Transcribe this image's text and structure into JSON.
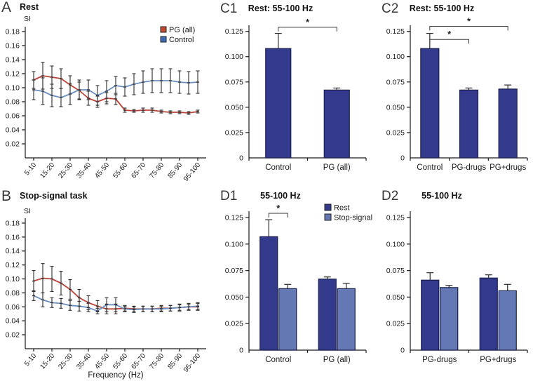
{
  "colors": {
    "pg_line": "#bc4338",
    "control_line": "#6b90c4",
    "pg_legend_fill": "#c04a30",
    "control_legend_fill": "#3f6cb5",
    "dark_bar": "#333a8c",
    "light_bar": "#6478b4",
    "bar_stroke": "#1b2050",
    "error_bar": "#2b2b2b",
    "axis": "#1a1a1a",
    "sig": "#3a3a3a"
  },
  "panels": {
    "A": {
      "letter": "A"
    },
    "B": {
      "letter": "B"
    },
    "C1": {
      "letter": "C1"
    },
    "C2": {
      "letter": "C2"
    },
    "D1": {
      "letter": "D1"
    },
    "D2": {
      "letter": "D2"
    }
  },
  "chart_data": [
    {
      "id": "A",
      "type": "line",
      "title": "Rest",
      "ylabel": "SI",
      "xlabel": "",
      "x_categories": [
        "5-10",
        "10-15",
        "15-20",
        "20-25",
        "25-30",
        "30-35",
        "35-40",
        "40-45",
        "45-50",
        "50-55",
        "55-60",
        "60-65",
        "65-70",
        "70-75",
        "75-80",
        "80-85",
        "85-90",
        "90-95",
        "95-100"
      ],
      "x_tick_labels": [
        "5-10",
        "15-20",
        "25-30",
        "35-40",
        "45-50",
        "55-60",
        "65-70",
        "75-80",
        "85-90",
        "95-100"
      ],
      "ytick_values": [
        0.02,
        0.04,
        0.06,
        0.08,
        0.1,
        0.12,
        0.14,
        0.16,
        0.18
      ],
      "ytick_labels": [
        "0.02",
        "0.04",
        "0.06",
        "0.08",
        "0.10",
        "0.12",
        "0.14",
        "0.16",
        "0.18"
      ],
      "ymin": 0,
      "ymax_axis": 0.187,
      "legend": true,
      "grid": false,
      "series": [
        {
          "name": "PG (all)",
          "color_key": "pg_line",
          "legend_fill": "pg_legend_fill",
          "values": [
            0.111,
            0.117,
            0.115,
            0.113,
            0.104,
            0.096,
            0.085,
            0.08,
            0.085,
            0.084,
            0.068,
            0.067,
            0.068,
            0.068,
            0.066,
            0.065,
            0.065,
            0.064,
            0.066
          ],
          "errors": [
            0.012,
            0.019,
            0.016,
            0.014,
            0.013,
            0.012,
            0.01,
            0.008,
            0.008,
            0.008,
            0.003,
            0.002,
            0.003,
            0.003,
            0.002,
            0.002,
            0.002,
            0.002,
            0.002
          ]
        },
        {
          "name": "Control",
          "color_key": "control_line",
          "legend_fill": "control_legend_fill",
          "values": [
            0.097,
            0.095,
            0.089,
            0.086,
            0.091,
            0.097,
            0.097,
            0.089,
            0.095,
            0.103,
            0.101,
            0.105,
            0.108,
            0.11,
            0.11,
            0.11,
            0.108,
            0.107,
            0.108
          ],
          "errors": [
            0.014,
            0.019,
            0.016,
            0.013,
            0.015,
            0.014,
            0.014,
            0.014,
            0.015,
            0.013,
            0.013,
            0.015,
            0.016,
            0.017,
            0.017,
            0.017,
            0.016,
            0.016,
            0.016
          ]
        }
      ]
    },
    {
      "id": "B",
      "type": "line",
      "title": "Stop-signal task",
      "ylabel": "SI",
      "xlabel": "Frequency (Hz)",
      "x_categories": [
        "5-10",
        "10-15",
        "15-20",
        "20-25",
        "25-30",
        "30-35",
        "35-40",
        "40-45",
        "45-50",
        "50-55",
        "55-60",
        "60-65",
        "65-70",
        "70-75",
        "75-80",
        "80-85",
        "85-90",
        "90-95",
        "95-100"
      ],
      "x_tick_labels": [
        "5-10",
        "15-20",
        "25-30",
        "35-40",
        "45-50",
        "55-60",
        "65-70",
        "75-80",
        "85-90",
        "95-100"
      ],
      "ytick_values": [
        0.02,
        0.04,
        0.06,
        0.08,
        0.1,
        0.12,
        0.14,
        0.16,
        0.18
      ],
      "ytick_labels": [
        "0.02",
        "0.04",
        "0.06",
        "0.08",
        "0.10",
        "0.12",
        "0.14",
        "0.16",
        "0.18"
      ],
      "ymin": 0,
      "ymax_axis": 0.187,
      "legend": false,
      "grid": false,
      "series": [
        {
          "name": "PG (all)",
          "color_key": "pg_line",
          "legend_fill": "pg_legend_fill",
          "values": [
            0.097,
            0.101,
            0.1,
            0.094,
            0.085,
            0.073,
            0.066,
            0.061,
            0.057,
            0.057,
            0.058,
            0.057,
            0.057,
            0.057,
            0.058,
            0.058,
            0.059,
            0.06,
            0.06
          ],
          "errors": [
            0.015,
            0.021,
            0.018,
            0.017,
            0.014,
            0.012,
            0.01,
            0.008,
            0.007,
            0.007,
            0.004,
            0.004,
            0.004,
            0.004,
            0.004,
            0.004,
            0.004,
            0.004,
            0.005
          ]
        },
        {
          "name": "Control",
          "color_key": "control_line",
          "legend_fill": "control_legend_fill",
          "values": [
            0.076,
            0.07,
            0.066,
            0.065,
            0.062,
            0.061,
            0.059,
            0.054,
            0.063,
            0.063,
            0.057,
            0.056,
            0.057,
            0.057,
            0.057,
            0.058,
            0.059,
            0.06,
            0.061
          ],
          "errors": [
            0.007,
            0.01,
            0.007,
            0.007,
            0.007,
            0.007,
            0.006,
            0.004,
            0.01,
            0.01,
            0.004,
            0.004,
            0.004,
            0.004,
            0.004,
            0.004,
            0.005,
            0.005,
            0.005
          ]
        }
      ]
    },
    {
      "id": "C1",
      "type": "bar",
      "title": "Rest: 55-100 Hz",
      "ylabel": "",
      "xlabel": "",
      "categories": [
        "Control",
        "PG (all)"
      ],
      "ytick_values": [
        0,
        0.025,
        0.05,
        0.075,
        0.1,
        0.125
      ],
      "ytick_labels": [
        "0",
        "0.025",
        "0.050",
        "0.075",
        "0.100",
        "0.125"
      ],
      "ymin": 0,
      "ymax_axis": 0.131,
      "legend": false,
      "grid": false,
      "series": [
        {
          "name": "Rest",
          "color_key": "dark_bar",
          "values": [
            0.108,
            0.067
          ],
          "errors": [
            0.015,
            0.002
          ]
        }
      ],
      "significance": [
        {
          "a": [
            0,
            0
          ],
          "b": [
            1,
            0
          ],
          "y": 0.129,
          "label": "*"
        }
      ]
    },
    {
      "id": "C2",
      "type": "bar",
      "title": "Rest: 55-100 Hz",
      "ylabel": "",
      "xlabel": "",
      "categories": [
        "Control",
        "PG-drugs",
        "PG+drugs"
      ],
      "ytick_values": [
        0,
        0.025,
        0.05,
        0.075,
        0.1,
        0.125
      ],
      "ytick_labels": [
        "0",
        "0.025",
        "0.050",
        "0.075",
        "0.100",
        "0.125"
      ],
      "ymin": 0,
      "ymax_axis": 0.131,
      "legend": false,
      "grid": false,
      "series": [
        {
          "name": "Rest",
          "color_key": "dark_bar",
          "values": [
            0.108,
            0.067,
            0.068
          ],
          "errors": [
            0.015,
            0.002,
            0.004
          ]
        }
      ],
      "significance": [
        {
          "a": [
            0,
            0
          ],
          "b": [
            1,
            0
          ],
          "y": 0.117,
          "label": "*"
        },
        {
          "a": [
            0,
            0
          ],
          "b": [
            2,
            0
          ],
          "y": 0.13,
          "label": "*"
        }
      ]
    },
    {
      "id": "D1",
      "type": "bar",
      "title": "55-100 Hz",
      "ylabel": "",
      "xlabel": "",
      "categories": [
        "Control",
        "PG (all)"
      ],
      "ytick_values": [
        0,
        0.025,
        0.05,
        0.075,
        0.1,
        0.125
      ],
      "ytick_labels": [
        "0",
        "0.025",
        "0.050",
        "0.075",
        "0.100",
        "0.125"
      ],
      "ymin": 0,
      "ymax_axis": 0.131,
      "legend": true,
      "grid": false,
      "series": [
        {
          "name": "Rest",
          "color_key": "dark_bar",
          "values": [
            0.107,
            0.067
          ],
          "errors": [
            0.016,
            0.002
          ]
        },
        {
          "name": "Stop-signal",
          "color_key": "light_bar",
          "values": [
            0.058,
            0.058
          ],
          "errors": [
            0.004,
            0.005
          ]
        }
      ],
      "significance": [
        {
          "a": [
            0,
            0
          ],
          "b": [
            0,
            1
          ],
          "y": 0.129,
          "label": "*"
        }
      ]
    },
    {
      "id": "D2",
      "type": "bar",
      "title": "55-100 Hz",
      "ylabel": "",
      "xlabel": "",
      "categories": [
        "PG-drugs",
        "PG+drugs"
      ],
      "ytick_values": [
        0,
        0.025,
        0.05,
        0.075,
        0.1,
        0.125
      ],
      "ytick_labels": [
        "0",
        "0.025",
        "0.050",
        "0.075",
        "0.100",
        "0.125"
      ],
      "ymin": 0,
      "ymax_axis": 0.131,
      "legend": false,
      "grid": false,
      "series": [
        {
          "name": "Rest",
          "color_key": "dark_bar",
          "values": [
            0.066,
            0.068
          ],
          "errors": [
            0.007,
            0.003
          ]
        },
        {
          "name": "Stop-signal",
          "color_key": "light_bar",
          "values": [
            0.059,
            0.056
          ],
          "errors": [
            0.002,
            0.006
          ]
        }
      ],
      "significance": []
    }
  ]
}
